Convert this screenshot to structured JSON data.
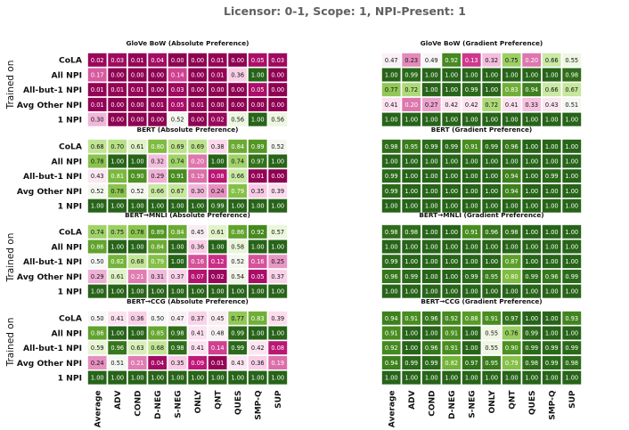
{
  "chart_data": {
    "type": "heatmap",
    "title": "Licensor: 0-1, Scope: 1, NPI-Present: 1",
    "ylabel": "Trained on",
    "color_scale": {
      "min": 0,
      "max": 1,
      "stops": [
        "#8e0152",
        "#c51b7d",
        "#de77ae",
        "#f1b6da",
        "#fde0ef",
        "#f7f7f7",
        "#e6f5d0",
        "#b8e186",
        "#7fbc41",
        "#4d9221",
        "#276419"
      ]
    },
    "row_labels": [
      "CoLA",
      "All NPI",
      "All-but-1 NPI",
      "Avg Other NPI",
      "1 NPI"
    ],
    "col_labels": [
      "Average",
      "ADV",
      "COND",
      "D-NEG",
      "S-NEG",
      "ONLY",
      "QNT",
      "QUES",
      "SMP-Q",
      "SUP"
    ],
    "panels": [
      {
        "title": "GloVe BoW (Absolute Preference)",
        "values": [
          [
            "0.02",
            "0.03",
            "0.01",
            "0.04",
            "0.00",
            "0.00",
            "0.01",
            "0.00",
            "0.05",
            "0.03"
          ],
          [
            "0.17",
            "0.00",
            "0.00",
            "0.00",
            "0.14",
            "0.00",
            "0.01",
            "0.36",
            "1.00",
            "0.00"
          ],
          [
            "0.01",
            "0.01",
            "0.01",
            "0.00",
            "0.03",
            "0.00",
            "0.00",
            "0.00",
            "0.05",
            "0.00"
          ],
          [
            "0.01",
            "0.00",
            "0.00",
            "0.01",
            "0.05",
            "0.01",
            "0.00",
            "0.00",
            "0.00",
            "0.00"
          ],
          [
            "0.30",
            "0.00",
            "0.00",
            "0.00",
            "0.52",
            "0.00",
            "0.02",
            "0.56",
            "1.00",
            "0.56"
          ]
        ]
      },
      {
        "title": "GloVe BoW (Gradient Preference)",
        "values": [
          [
            "0.47",
            "0.23",
            "0.49",
            "0.92",
            "0.13",
            "0.32",
            "0.75",
            "0.20",
            "0.66",
            "0.55"
          ],
          [
            "1.00",
            "0.99",
            "1.00",
            "1.00",
            "1.00",
            "1.00",
            "1.00",
            "1.00",
            "1.00",
            "0.98"
          ],
          [
            "0.77",
            "0.72",
            "1.00",
            "1.00",
            "0.99",
            "1.00",
            "0.83",
            "0.94",
            "0.66",
            "0.67"
          ],
          [
            "0.41",
            "0.20",
            "0.27",
            "0.42",
            "0.42",
            "0.72",
            "0.41",
            "0.33",
            "0.43",
            "0.51"
          ],
          [
            "1.00",
            "1.00",
            "1.00",
            "1.00",
            "1.00",
            "1.00",
            "1.00",
            "1.00",
            "1.00",
            "1.00"
          ]
        ]
      },
      {
        "title": "BERT (Absolute Preference)",
        "values": [
          [
            "0.68",
            "0.70",
            "0.61",
            "0.80",
            "0.69",
            "0.69",
            "0.38",
            "0.84",
            "0.89",
            "0.52"
          ],
          [
            "0.78",
            "1.00",
            "1.00",
            "0.32",
            "0.74",
            "0.20",
            "1.00",
            "0.74",
            "0.97",
            "1.00"
          ],
          [
            "0.43",
            "0.81",
            "0.90",
            "0.29",
            "0.91",
            "0.19",
            "0.08",
            "0.66",
            "0.01",
            "0.00"
          ],
          [
            "0.52",
            "0.78",
            "0.52",
            "0.66",
            "0.67",
            "0.30",
            "0.24",
            "0.79",
            "0.35",
            "0.39"
          ],
          [
            "1.00",
            "1.00",
            "1.00",
            "1.00",
            "1.00",
            "1.00",
            "0.99",
            "1.00",
            "1.00",
            "1.00"
          ]
        ]
      },
      {
        "title": "BERT (Gradient Preference)",
        "values": [
          [
            "0.98",
            "0.95",
            "0.99",
            "0.99",
            "0.91",
            "0.99",
            "0.96",
            "1.00",
            "1.00",
            "1.00"
          ],
          [
            "1.00",
            "1.00",
            "1.00",
            "1.00",
            "1.00",
            "1.00",
            "1.00",
            "1.00",
            "1.00",
            "1.00"
          ],
          [
            "0.99",
            "1.00",
            "1.00",
            "1.00",
            "1.00",
            "1.00",
            "0.94",
            "1.00",
            "0.99",
            "1.00"
          ],
          [
            "0.99",
            "1.00",
            "1.00",
            "1.00",
            "1.00",
            "1.00",
            "0.94",
            "1.00",
            "1.00",
            "1.00"
          ],
          [
            "1.00",
            "1.00",
            "1.00",
            "1.00",
            "1.00",
            "1.00",
            "1.00",
            "1.00",
            "1.00",
            "1.00"
          ]
        ]
      },
      {
        "title": "BERT→MNLI (Absolute Preference)",
        "values": [
          [
            "0.74",
            "0.75",
            "0.78",
            "0.89",
            "0.84",
            "0.45",
            "0.61",
            "0.86",
            "0.92",
            "0.57"
          ],
          [
            "0.86",
            "1.00",
            "1.00",
            "0.84",
            "1.00",
            "0.36",
            "1.00",
            "0.58",
            "1.00",
            "1.00"
          ],
          [
            "0.50",
            "0.82",
            "0.68",
            "0.79",
            "1.00",
            "0.16",
            "0.12",
            "0.52",
            "0.16",
            "0.25"
          ],
          [
            "0.29",
            "0.61",
            "0.21",
            "0.31",
            "0.37",
            "0.07",
            "0.02",
            "0.54",
            "0.05",
            "0.37"
          ],
          [
            "1.00",
            "1.00",
            "1.00",
            "1.00",
            "1.00",
            "1.00",
            "1.00",
            "1.00",
            "1.00",
            "1.00"
          ]
        ]
      },
      {
        "title": "BERT→MNLI (Gradient Preference)",
        "values": [
          [
            "0.98",
            "0.98",
            "1.00",
            "1.00",
            "0.91",
            "0.96",
            "0.98",
            "1.00",
            "1.00",
            "1.00"
          ],
          [
            "1.00",
            "1.00",
            "1.00",
            "1.00",
            "1.00",
            "1.00",
            "1.00",
            "1.00",
            "1.00",
            "1.00"
          ],
          [
            "0.99",
            "1.00",
            "1.00",
            "1.00",
            "1.00",
            "1.00",
            "0.87",
            "1.00",
            "1.00",
            "1.00"
          ],
          [
            "0.96",
            "0.99",
            "1.00",
            "1.00",
            "0.99",
            "0.95",
            "0.80",
            "0.99",
            "0.96",
            "0.99"
          ],
          [
            "1.00",
            "1.00",
            "1.00",
            "1.00",
            "1.00",
            "1.00",
            "1.00",
            "1.00",
            "1.00",
            "1.00"
          ]
        ]
      },
      {
        "title": "BERT→CCG (Absolute Preference)",
        "values": [
          [
            "0.50",
            "0.41",
            "0.36",
            "0.50",
            "0.47",
            "0.37",
            "0.45",
            "0.77",
            "0.83",
            "0.39"
          ],
          [
            "0.86",
            "1.00",
            "1.00",
            "0.85",
            "0.98",
            "0.41",
            "0.48",
            "0.99",
            "1.00",
            "1.00"
          ],
          [
            "0.59",
            "0.96",
            "0.63",
            "0.68",
            "0.98",
            "0.41",
            "0.14",
            "0.99",
            "0.42",
            "0.08"
          ],
          [
            "0.24",
            "0.51",
            "0.21",
            "0.04",
            "0.35",
            "0.09",
            "0.01",
            "0.43",
            "0.36",
            "0.19"
          ],
          [
            "1.00",
            "1.00",
            "1.00",
            "1.00",
            "1.00",
            "1.00",
            "1.00",
            "1.00",
            "1.00",
            "1.00"
          ]
        ]
      },
      {
        "title": "BERT→CCG (Gradient Preference)",
        "values": [
          [
            "0.94",
            "0.91",
            "0.96",
            "0.92",
            "0.88",
            "0.91",
            "0.97",
            "1.00",
            "1.00",
            "0.93"
          ],
          [
            "0.91",
            "1.00",
            "1.00",
            "0.91",
            "1.00",
            "0.55",
            "0.76",
            "0.99",
            "1.00",
            "1.00"
          ],
          [
            "0.92",
            "1.00",
            "0.96",
            "0.91",
            "1.00",
            "0.55",
            "0.90",
            "0.99",
            "0.99",
            "0.99"
          ],
          [
            "0.94",
            "0.99",
            "0.99",
            "0.82",
            "0.97",
            "0.95",
            "0.79",
            "0.98",
            "0.99",
            "0.98"
          ],
          [
            "1.00",
            "1.00",
            "1.00",
            "1.00",
            "1.00",
            "1.00",
            "1.00",
            "1.00",
            "1.00",
            "1.00"
          ]
        ]
      }
    ]
  }
}
